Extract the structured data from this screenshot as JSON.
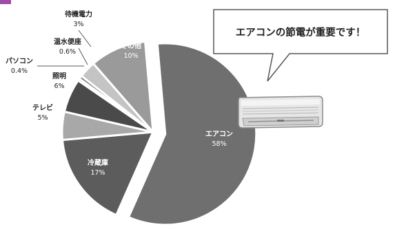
{
  "chart_data": {
    "type": "pie",
    "title": "",
    "slices": [
      {
        "label": "エアコン",
        "value": 58,
        "display": "58%",
        "color": "#6f6f6f",
        "text_color": "#ffffff",
        "exploded": true
      },
      {
        "label": "冷蔵庫",
        "value": 17,
        "display": "17%",
        "color": "#5c5c5c",
        "text_color": "#ffffff"
      },
      {
        "label": "テレビ",
        "value": 5,
        "display": "5%",
        "color": "#a8a8a8",
        "text_color": "#222222"
      },
      {
        "label": "照明",
        "value": 6,
        "display": "6%",
        "color": "#4a4a4a",
        "text_color": "#222222"
      },
      {
        "label": "パソコン",
        "value": 0.4,
        "display": "0.4%",
        "color": "#8a8a8a",
        "text_color": "#222222"
      },
      {
        "label": "温水便座",
        "value": 0.6,
        "display": "0.6%",
        "color": "#7a7a7a",
        "text_color": "#222222"
      },
      {
        "label": "待機電力",
        "value": 3,
        "display": "3%",
        "color": "#c4c4c4",
        "text_color": "#222222"
      },
      {
        "label": "その他",
        "value": 10,
        "display": "10%",
        "color": "#9a9a9a",
        "text_color": "#ffffff"
      }
    ]
  },
  "callout": {
    "text": "エアコンの節電が重要です！"
  },
  "colors": {
    "accent": "#9b4fa3",
    "background": "#ffffff",
    "callout_border": "#555555"
  },
  "icons": {
    "air_conditioner": "air-conditioner-icon"
  }
}
